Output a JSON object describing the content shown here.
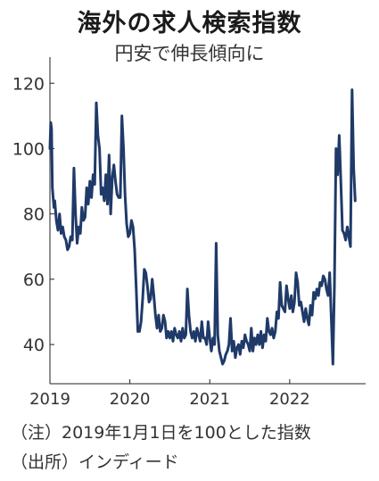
{
  "header": {
    "title": "海外の求人検索指数",
    "subtitle": "円安で伸長傾向に"
  },
  "notes": {
    "note1": "（注）2019年1月1日を100とした指数",
    "note2": "（出所）インディード"
  },
  "chart_data": {
    "type": "line",
    "title": "海外の求人検索指数",
    "subtitle": "円安で伸長傾向に",
    "xlabel": "",
    "ylabel": "",
    "x_ticks": [
      "2019",
      "2020",
      "2021",
      "2022"
    ],
    "y_ticks": [
      40,
      60,
      80,
      100,
      120
    ],
    "xlim": [
      2019.0,
      2022.95
    ],
    "ylim": [
      28,
      128
    ],
    "grid": false,
    "line_color": "#1f3a68",
    "series": [
      {
        "x": [
          2019.0,
          2019.01,
          2019.02,
          2019.03,
          2019.04,
          2019.05,
          2019.06,
          2019.08,
          2019.1,
          2019.12,
          2019.14,
          2019.16,
          2019.18,
          2019.2,
          2019.22,
          2019.24,
          2019.26,
          2019.28,
          2019.3,
          2019.32,
          2019.34,
          2019.36,
          2019.38,
          2019.4,
          2019.42,
          2019.44,
          2019.46,
          2019.48,
          2019.5,
          2019.52,
          2019.54,
          2019.56,
          2019.58,
          2019.6,
          2019.62,
          2019.64,
          2019.66,
          2019.68,
          2019.7,
          2019.72,
          2019.74,
          2019.76,
          2019.78,
          2019.8,
          2019.82,
          2019.84,
          2019.86,
          2019.88,
          2019.9,
          2019.92,
          2019.94,
          2019.96,
          2019.98,
          2020.0,
          2020.02,
          2020.04,
          2020.06,
          2020.08,
          2020.1,
          2020.12,
          2020.14,
          2020.16,
          2020.18,
          2020.2,
          2020.22,
          2020.24,
          2020.26,
          2020.28,
          2020.3,
          2020.32,
          2020.34,
          2020.36,
          2020.38,
          2020.4,
          2020.42,
          2020.44,
          2020.46,
          2020.48,
          2020.5,
          2020.52,
          2020.54,
          2020.56,
          2020.58,
          2020.6,
          2020.62,
          2020.64,
          2020.66,
          2020.68,
          2020.7,
          2020.72,
          2020.74,
          2020.76,
          2020.78,
          2020.8,
          2020.82,
          2020.84,
          2020.86,
          2020.88,
          2020.9,
          2020.92,
          2020.94,
          2020.96,
          2020.98,
          2021.0,
          2021.02,
          2021.04,
          2021.06,
          2021.08,
          2021.1,
          2021.12,
          2021.14,
          2021.16,
          2021.18,
          2021.2,
          2021.22,
          2021.24,
          2021.26,
          2021.28,
          2021.3,
          2021.32,
          2021.34,
          2021.36,
          2021.38,
          2021.4,
          2021.42,
          2021.44,
          2021.46,
          2021.48,
          2021.5,
          2021.52,
          2021.54,
          2021.56,
          2021.58,
          2021.6,
          2021.62,
          2021.64,
          2021.66,
          2021.68,
          2021.7,
          2021.72,
          2021.74,
          2021.76,
          2021.78,
          2021.8,
          2021.82,
          2021.84,
          2021.86,
          2021.88,
          2021.9,
          2021.92,
          2021.94,
          2021.96,
          2021.98,
          2022.0,
          2022.02,
          2022.04,
          2022.06,
          2022.08,
          2022.1,
          2022.12,
          2022.14,
          2022.16,
          2022.18,
          2022.2,
          2022.22,
          2022.24,
          2022.26,
          2022.28,
          2022.3,
          2022.32,
          2022.34,
          2022.36,
          2022.38,
          2022.4,
          2022.42,
          2022.44,
          2022.46,
          2022.48,
          2022.5,
          2022.52,
          2022.54,
          2022.56,
          2022.58,
          2022.6,
          2022.62,
          2022.64,
          2022.66,
          2022.68,
          2022.7,
          2022.72,
          2022.74,
          2022.76,
          2022.78,
          2022.8,
          2022.82
        ],
        "values": [
          100,
          108,
          106,
          88,
          85,
          82,
          84,
          78,
          75,
          80,
          74,
          76,
          73,
          72,
          69,
          70,
          73,
          72,
          94,
          80,
          71,
          76,
          74,
          82,
          78,
          79,
          88,
          83,
          90,
          85,
          92,
          89,
          114,
          104,
          100,
          86,
          88,
          84,
          92,
          83,
          98,
          80,
          91,
          95,
          90,
          86,
          85,
          85,
          110,
          100,
          86,
          77,
          73,
          74,
          78,
          76,
          69,
          57,
          44,
          44,
          47,
          54,
          63,
          62,
          58,
          53,
          54,
          60,
          55,
          49,
          45,
          49,
          44,
          45,
          49,
          47,
          42,
          44,
          42,
          44,
          41,
          45,
          43,
          42,
          44,
          41,
          45,
          42,
          43,
          57,
          49,
          44,
          42,
          44,
          41,
          45,
          43,
          41,
          47,
          42,
          42,
          40,
          47,
          42,
          38,
          42,
          40,
          71,
          43,
          38,
          36,
          34,
          35,
          37,
          38,
          40,
          48,
          38,
          41,
          36,
          39,
          40,
          37,
          41,
          39,
          43,
          41,
          40,
          38,
          45,
          38,
          42,
          40,
          43,
          40,
          44,
          39,
          43,
          41,
          48,
          44,
          43,
          45,
          42,
          44,
          50,
          48,
          59,
          52,
          51,
          50,
          58,
          54,
          51,
          55,
          50,
          53,
          62,
          59,
          52,
          53,
          50,
          47,
          51,
          48,
          46,
          52,
          49,
          56,
          54,
          57,
          55,
          59,
          58,
          61,
          60,
          57,
          55,
          62,
          48,
          34,
          58,
          100,
          92,
          104,
          90,
          75,
          74,
          72,
          76,
          73,
          70,
          118,
          94,
          84
        ]
      }
    ]
  }
}
